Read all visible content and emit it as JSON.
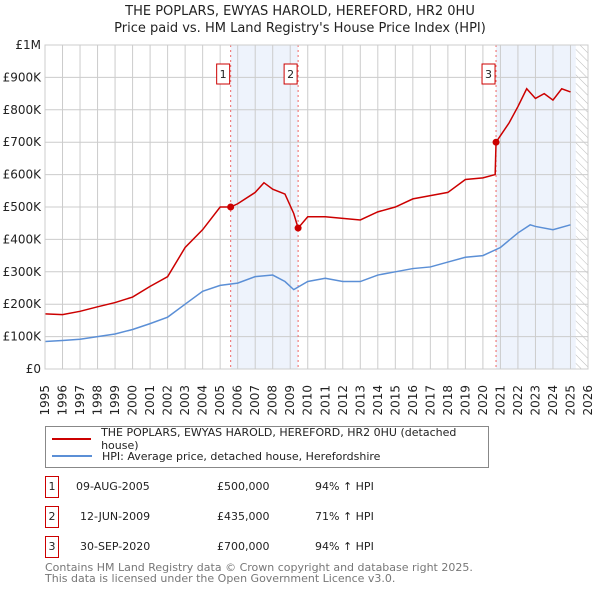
{
  "chart_data": {
    "type": "line",
    "title": "THE POPLARS, EWYAS HAROLD, HEREFORD, HR2 0HU",
    "subtitle": "Price paid vs. HM Land Registry's House Price Index (HPI)",
    "xlim": [
      1995,
      2026
    ],
    "ylim": [
      0,
      1000000
    ],
    "x_ticks": [
      "1995",
      "1996",
      "1997",
      "1998",
      "1999",
      "2000",
      "2001",
      "2002",
      "2003",
      "2004",
      "2005",
      "2006",
      "2007",
      "2008",
      "2009",
      "2010",
      "2011",
      "2012",
      "2013",
      "2014",
      "2015",
      "2016",
      "2017",
      "2018",
      "2019",
      "2020",
      "2021",
      "2022",
      "2023",
      "2024",
      "2025",
      "2026"
    ],
    "y_ticks": [
      {
        "v": 0,
        "label": "£0"
      },
      {
        "v": 100000,
        "label": "£100K"
      },
      {
        "v": 200000,
        "label": "£200K"
      },
      {
        "v": 300000,
        "label": "£300K"
      },
      {
        "v": 400000,
        "label": "£400K"
      },
      {
        "v": 500000,
        "label": "£500K"
      },
      {
        "v": 600000,
        "label": "£600K"
      },
      {
        "v": 700000,
        "label": "£700K"
      },
      {
        "v": 800000,
        "label": "£800K"
      },
      {
        "v": 900000,
        "label": "£900K"
      },
      {
        "v": 1000000,
        "label": "£1M"
      }
    ],
    "grid": true,
    "shaded_ranges": [
      [
        2005.6,
        2009.45
      ],
      [
        2020.75,
        2025.3
      ]
    ],
    "hatched_from": 2025.3,
    "series": [
      {
        "name": "THE POPLARS, EWYAS HAROLD, HEREFORD, HR2 0HU (detached house)",
        "color": "#cc0000",
        "x": [
          1995,
          1996,
          1997,
          1998,
          1999,
          2000,
          2001,
          2002,
          2003,
          2004,
          2005,
          2005.6,
          2006,
          2007,
          2007.5,
          2008,
          2008.7,
          2009.2,
          2009.45,
          2010,
          2011,
          2012,
          2013,
          2014,
          2015,
          2016,
          2017,
          2018,
          2019,
          2020,
          2020.7,
          2020.75,
          2021,
          2021.5,
          2022,
          2022.5,
          2023,
          2023.5,
          2024,
          2024.5,
          2025
        ],
        "y": [
          170000,
          168000,
          178000,
          192000,
          205000,
          222000,
          255000,
          285000,
          375000,
          430000,
          500000,
          500000,
          510000,
          545000,
          575000,
          555000,
          540000,
          480000,
          435000,
          470000,
          470000,
          465000,
          460000,
          485000,
          500000,
          525000,
          535000,
          545000,
          585000,
          590000,
          600000,
          700000,
          720000,
          760000,
          810000,
          865000,
          835000,
          850000,
          830000,
          865000,
          855000
        ]
      },
      {
        "name": "HPI: Average price, detached house, Herefordshire",
        "color": "#5b8fd6",
        "x": [
          1995,
          1996,
          1997,
          1998,
          1999,
          2000,
          2001,
          2002,
          2003,
          2004,
          2005,
          2006,
          2007,
          2008,
          2008.7,
          2009.2,
          2010,
          2011,
          2012,
          2013,
          2014,
          2015,
          2016,
          2017,
          2018,
          2019,
          2020,
          2021,
          2022,
          2022.7,
          2023,
          2024,
          2025
        ],
        "y": [
          85000,
          88000,
          92000,
          100000,
          108000,
          122000,
          140000,
          160000,
          200000,
          240000,
          258000,
          265000,
          285000,
          290000,
          270000,
          245000,
          270000,
          280000,
          270000,
          270000,
          290000,
          300000,
          310000,
          315000,
          330000,
          345000,
          350000,
          375000,
          420000,
          445000,
          440000,
          430000,
          445000
        ]
      }
    ],
    "markers": [
      {
        "label": "1",
        "x": 2005.6,
        "y": 500000
      },
      {
        "label": "2",
        "x": 2009.45,
        "y": 435000
      },
      {
        "label": "3",
        "x": 2020.75,
        "y": 700000
      }
    ]
  },
  "transactions": [
    {
      "num": "1",
      "date": "09-AUG-2005",
      "price": "£500,000",
      "hpi": "94% ↑ HPI"
    },
    {
      "num": "2",
      "date": "12-JUN-2009",
      "price": "£435,000",
      "hpi": "71% ↑ HPI"
    },
    {
      "num": "3",
      "date": "30-SEP-2020",
      "price": "£700,000",
      "hpi": "94% ↑ HPI"
    }
  ],
  "footer": {
    "line1": "Contains HM Land Registry data © Crown copyright and database right 2025.",
    "line2": "This data is licensed under the Open Government Licence v3.0."
  }
}
